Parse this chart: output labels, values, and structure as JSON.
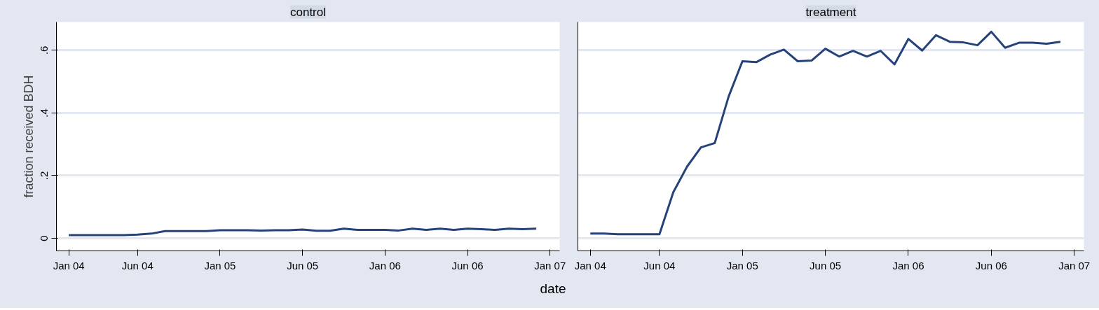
{
  "chart_data": [
    {
      "type": "line",
      "title": "control",
      "xlabel": "date",
      "ylabel": "fraction received BDH",
      "categories": [
        "Jan 04",
        null,
        null,
        null,
        null,
        "Jun 04",
        null,
        null,
        null,
        null,
        null,
        "Jan 05",
        null,
        null,
        null,
        null,
        null,
        "Jun 05",
        null,
        null,
        null,
        null,
        null,
        "Jan 06",
        null,
        null,
        null,
        null,
        null,
        "Jun 06",
        null,
        null,
        null,
        null,
        null,
        "Jan 07"
      ],
      "series": [
        {
          "color": "#26427a",
          "values": [
            0.01,
            0.01,
            0.01,
            0.01,
            0.01,
            0.012,
            0.015,
            0.023,
            0.023,
            0.023,
            0.023,
            0.026,
            0.026,
            0.026,
            0.025,
            0.026,
            0.026,
            0.028,
            0.024,
            0.024,
            0.031,
            0.027,
            0.027,
            0.027,
            0.025,
            0.031,
            0.027,
            0.031,
            0.027,
            0.031,
            0.029,
            0.027,
            0.031,
            0.029,
            0.031,
            null
          ]
        }
      ],
      "ylim": [
        -0.04,
        0.69
      ],
      "yticks": [
        0,
        {
          "value": 0.2,
          "label": ".2"
        },
        {
          "value": 0.4,
          "label": ".4"
        },
        {
          "value": 0.6,
          "label": ".6"
        }
      ],
      "grid": "y",
      "marker": "none",
      "line_style": "solid"
    },
    {
      "type": "line",
      "title": "treatment",
      "categories": [
        "Jan 04",
        null,
        null,
        null,
        null,
        "Jun 04",
        null,
        null,
        null,
        null,
        null,
        "Jan 05",
        null,
        null,
        null,
        null,
        null,
        "Jun 05",
        null,
        null,
        null,
        null,
        null,
        "Jan 06",
        null,
        null,
        null,
        null,
        null,
        "Jun 06",
        null,
        null,
        null,
        null,
        null,
        "Jan 07"
      ],
      "series": [
        {
          "color": "#26427a",
          "values": [
            0.015,
            0.015,
            0.013,
            0.013,
            0.013,
            0.013,
            0.147,
            0.229,
            0.29,
            0.304,
            0.452,
            0.565,
            0.562,
            0.586,
            0.602,
            0.565,
            0.567,
            0.605,
            0.58,
            0.598,
            0.58,
            0.598,
            0.555,
            0.636,
            0.599,
            0.648,
            0.627,
            0.625,
            0.616,
            0.659,
            0.608,
            0.624,
            0.624,
            0.621,
            0.627,
            null
          ]
        }
      ],
      "ylim": [
        -0.04,
        0.69
      ],
      "yticks": [
        {
          "value": 0,
          "label": null
        },
        {
          "value": 0.2,
          "label": null
        },
        {
          "value": 0.4,
          "label": null
        },
        {
          "value": 0.6,
          "label": null
        }
      ],
      "grid": "y",
      "tick_labels": "x",
      "marker": "none",
      "line_style": "solid"
    }
  ]
}
